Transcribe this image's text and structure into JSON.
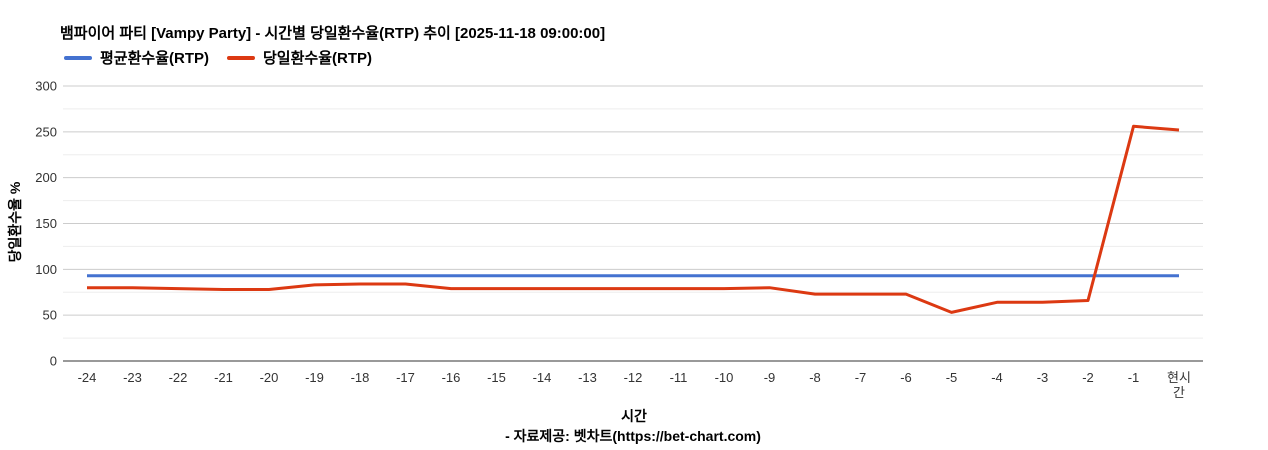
{
  "footer": {
    "text": "- 자료제공: 벳차트(https://bet-chart.com)"
  },
  "chart_data": {
    "type": "line",
    "title": "뱀파이어 파티 [Vampy Party] - 시간별 당일환수율(RTP) 추이 [2025-11-18 09:00:00]",
    "xlabel": "시간",
    "ylabel": "당일환수율 %",
    "categories": [
      "-24",
      "-23",
      "-22",
      "-21",
      "-20",
      "-19",
      "-18",
      "-17",
      "-16",
      "-15",
      "-14",
      "-13",
      "-12",
      "-11",
      "-10",
      "-9",
      "-8",
      "-7",
      "-6",
      "-5",
      "-4",
      "-3",
      "-2",
      "-1",
      "현시간"
    ],
    "current_time_label_lines": [
      "현시",
      "간"
    ],
    "series": [
      {
        "name": "평균환수율(RTP)",
        "color": "#4472d0",
        "values": [
          93,
          93,
          93,
          93,
          93,
          93,
          93,
          93,
          93,
          93,
          93,
          93,
          93,
          93,
          93,
          93,
          93,
          93,
          93,
          93,
          93,
          93,
          93,
          93,
          93
        ]
      },
      {
        "name": "당일환수율(RTP)",
        "color": "#dc3912",
        "values": [
          80,
          80,
          79,
          78,
          78,
          83,
          84,
          84,
          79,
          79,
          79,
          79,
          79,
          79,
          79,
          80,
          73,
          73,
          73,
          53,
          64,
          64,
          66,
          256,
          252
        ]
      }
    ],
    "ylim": [
      0,
      300
    ],
    "y_major_step": 50,
    "y_minor_step": 25,
    "yticks": [
      0,
      50,
      100,
      150,
      200,
      250,
      300
    ],
    "legend_position": "top-left",
    "grid": {
      "major_color": "#cccccc",
      "minor_color": "#ededed",
      "axis_color": "#333333"
    }
  }
}
